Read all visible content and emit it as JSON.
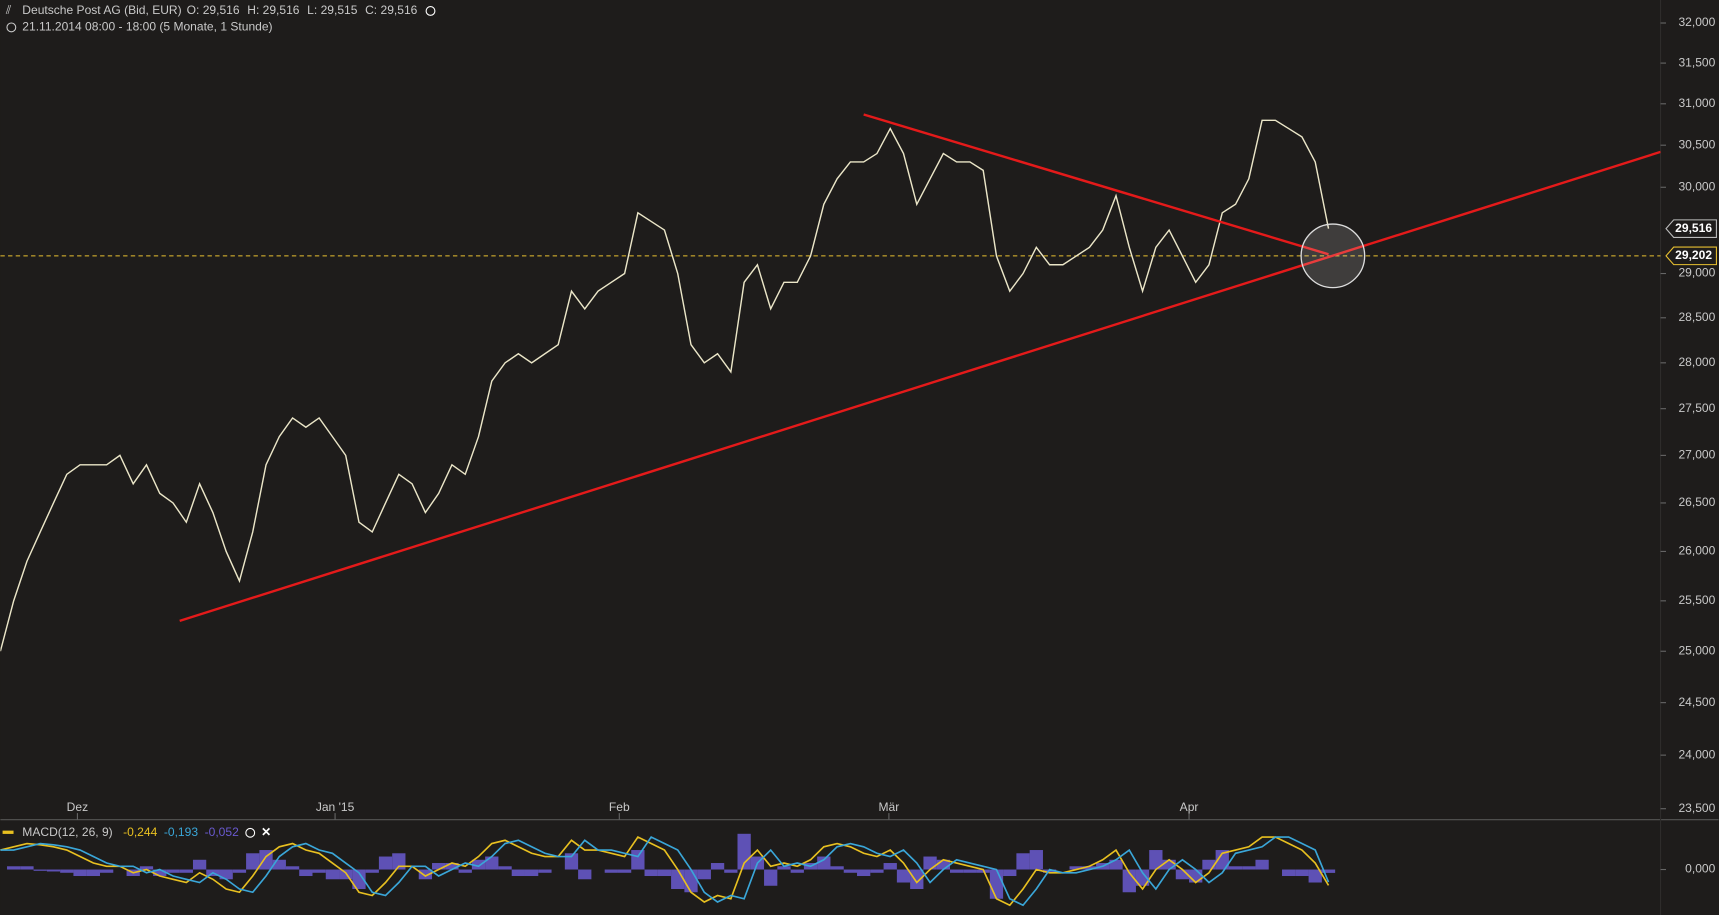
{
  "chart_data": [
    {
      "type": "line",
      "title": "Deutsche Post AG (Bid, EUR)",
      "stats": [
        "O: 29,516",
        "H: 29,516",
        "L: 29,515",
        "C: 29,516"
      ],
      "subtitle": "21.11.2014 08:00 - 18:00 (5 Monate, 1 Stunde)",
      "log_scale": true,
      "color": "#ebe6c8",
      "values": [
        25.0,
        25.5,
        25.9,
        26.2,
        26.5,
        26.8,
        26.9,
        26.9,
        26.9,
        27.0,
        26.7,
        26.9,
        26.6,
        26.5,
        26.3,
        26.7,
        26.4,
        26.0,
        25.7,
        26.2,
        26.9,
        27.2,
        27.4,
        27.3,
        27.4,
        27.2,
        27.0,
        26.3,
        26.2,
        26.5,
        26.8,
        26.7,
        26.4,
        26.6,
        26.9,
        26.8,
        27.2,
        27.8,
        28.0,
        28.1,
        28.0,
        28.1,
        28.2,
        28.8,
        28.6,
        28.8,
        28.9,
        29.0,
        29.7,
        29.6,
        29.5,
        29.0,
        28.2,
        28.0,
        28.1,
        27.9,
        28.9,
        29.1,
        28.6,
        28.9,
        28.9,
        29.2,
        29.8,
        30.1,
        30.3,
        30.3,
        30.4,
        30.7,
        30.4,
        29.8,
        30.1,
        30.4,
        30.3,
        30.3,
        30.2,
        29.2,
        28.8,
        29.0,
        29.3,
        29.1,
        29.1,
        29.2,
        29.3,
        29.5,
        29.9,
        29.3,
        28.8,
        29.3,
        29.5,
        29.2,
        28.9,
        29.1,
        29.7,
        29.8,
        30.1,
        30.8,
        30.8,
        30.7,
        30.6,
        30.3,
        29.516
      ],
      "xlim": [
        0,
        125
      ],
      "xticks": [
        {
          "value": 5.8,
          "label": "Dez"
        },
        {
          "value": 25.2,
          "label": "Jan '15"
        },
        {
          "value": 46.6,
          "label": "Feb"
        },
        {
          "value": 66.9,
          "label": "Mär"
        },
        {
          "value": 89.5,
          "label": "Apr"
        }
      ],
      "ylim": [
        23.5,
        32
      ],
      "yticks": [
        {
          "value": 23.5,
          "label": "23,500"
        },
        {
          "value": 24,
          "label": "24,000"
        },
        {
          "value": 24.5,
          "label": "24,500"
        },
        {
          "value": 25,
          "label": "25,000"
        },
        {
          "value": 25.5,
          "label": "25,500"
        },
        {
          "value": 26,
          "label": "26,000"
        },
        {
          "value": 26.5,
          "label": "26,500"
        },
        {
          "value": 27,
          "label": "27,000"
        },
        {
          "value": 27.5,
          "label": "27,500"
        },
        {
          "value": 28,
          "label": "28,000"
        },
        {
          "value": 28.5,
          "label": "28,500"
        },
        {
          "value": 29,
          "label": "29,000"
        },
        {
          "value": 30,
          "label": "30,000"
        },
        {
          "value": 30.5,
          "label": "30,500"
        },
        {
          "value": 31,
          "label": "31,000"
        },
        {
          "value": 31.5,
          "label": "31,500"
        },
        {
          "value": 32,
          "label": "32,000"
        }
      ],
      "last_price": {
        "value": 29.516,
        "label": "29,516"
      },
      "horizontal_line": {
        "value": 29.202,
        "label": "29,202",
        "color": "#e8c030"
      },
      "trendlines": [
        {
          "color": "#e41a1a",
          "x": [
            13.5,
            125
          ],
          "y": [
            25.3,
            30.42
          ]
        },
        {
          "color": "#e41a1a",
          "x": [
            65,
            100
          ],
          "y": [
            30.87,
            29.22
          ]
        }
      ]
    },
    {
      "type": "macd",
      "title": "MACD(12, 26, 9)",
      "ylim": [
        -0.7,
        0.7
      ],
      "yticks": [
        {
          "value": 0,
          "label": "0,000"
        }
      ],
      "xlim": [
        0,
        125
      ],
      "series": [
        {
          "color": "#e8c020",
          "current": "-0,244",
          "values": [
            0.3,
            0.35,
            0.4,
            0.38,
            0.35,
            0.3,
            0.2,
            0.1,
            0.05,
            0.05,
            -0.05,
            0.0,
            -0.1,
            -0.15,
            -0.2,
            -0.05,
            -0.15,
            -0.3,
            -0.35,
            -0.1,
            0.2,
            0.35,
            0.4,
            0.3,
            0.25,
            0.1,
            -0.05,
            -0.35,
            -0.4,
            -0.2,
            0.05,
            0.05,
            -0.1,
            0.0,
            0.1,
            0.05,
            0.2,
            0.4,
            0.45,
            0.35,
            0.25,
            0.2,
            0.2,
            0.45,
            0.3,
            0.3,
            0.25,
            0.2,
            0.5,
            0.4,
            0.3,
            0.0,
            -0.35,
            -0.5,
            -0.4,
            -0.45,
            0.1,
            0.3,
            0.05,
            0.1,
            0.05,
            0.15,
            0.35,
            0.4,
            0.35,
            0.25,
            0.2,
            0.3,
            0.1,
            -0.2,
            0.0,
            0.15,
            0.1,
            0.05,
            0.0,
            -0.45,
            -0.55,
            -0.3,
            0.0,
            -0.05,
            -0.05,
            0.0,
            0.05,
            0.15,
            0.3,
            -0.05,
            -0.3,
            0.0,
            0.15,
            0.0,
            -0.2,
            -0.05,
            0.25,
            0.3,
            0.35,
            0.5,
            0.5,
            0.4,
            0.3,
            0.1,
            -0.244
          ]
        },
        {
          "color": "#3aa6d8",
          "current": "-0,193",
          "values": [
            0.3,
            0.3,
            0.35,
            0.4,
            0.38,
            0.35,
            0.3,
            0.2,
            0.1,
            0.05,
            0.05,
            -0.05,
            0.0,
            -0.1,
            -0.15,
            -0.2,
            -0.05,
            -0.15,
            -0.3,
            -0.35,
            -0.1,
            0.2,
            0.35,
            0.4,
            0.3,
            0.25,
            0.1,
            -0.05,
            -0.35,
            -0.4,
            -0.2,
            0.05,
            0.05,
            -0.1,
            0.0,
            0.1,
            0.05,
            0.2,
            0.4,
            0.45,
            0.35,
            0.25,
            0.2,
            0.2,
            0.45,
            0.3,
            0.3,
            0.25,
            0.2,
            0.5,
            0.4,
            0.3,
            0.0,
            -0.35,
            -0.5,
            -0.4,
            -0.45,
            0.1,
            0.3,
            0.05,
            0.1,
            0.05,
            0.15,
            0.35,
            0.4,
            0.35,
            0.25,
            0.2,
            0.3,
            0.1,
            -0.2,
            0.0,
            0.15,
            0.1,
            0.05,
            0.0,
            -0.45,
            -0.55,
            -0.3,
            0.0,
            -0.05,
            -0.05,
            0.0,
            0.05,
            0.15,
            0.3,
            -0.05,
            -0.3,
            0.0,
            0.15,
            0.0,
            -0.2,
            -0.05,
            0.25,
            0.3,
            0.35,
            0.5,
            0.5,
            0.4,
            0.3,
            -0.193
          ]
        },
        {
          "color": "#6a5ad0",
          "current": "-0,052",
          "bars": true,
          "values": [
            0,
            0.05,
            0.05,
            -0.02,
            -0.03,
            -0.05,
            -0.1,
            -0.1,
            -0.05,
            0,
            -0.1,
            0.05,
            -0.1,
            -0.05,
            -0.05,
            0.15,
            -0.1,
            -0.15,
            -0.05,
            0.25,
            0.3,
            0.15,
            0.05,
            -0.1,
            -0.05,
            -0.15,
            -0.15,
            -0.3,
            -0.05,
            0.2,
            0.25,
            0,
            -0.15,
            0.1,
            0.1,
            -0.05,
            0.15,
            0.2,
            0.05,
            -0.1,
            -0.1,
            -0.05,
            0,
            0.25,
            -0.15,
            0,
            -0.05,
            -0.05,
            0.3,
            -0.1,
            -0.1,
            -0.3,
            -0.35,
            -0.15,
            0.1,
            -0.05,
            0.55,
            0.2,
            -0.25,
            0.05,
            -0.05,
            0.1,
            0.2,
            0.05,
            -0.05,
            -0.1,
            -0.05,
            0.1,
            -0.2,
            -0.3,
            0.2,
            0.15,
            -0.05,
            -0.05,
            -0.05,
            -0.45,
            -0.1,
            0.25,
            0.3,
            -0.05,
            0,
            0.05,
            0.05,
            0.1,
            0.15,
            -0.35,
            -0.25,
            0.3,
            0.15,
            -0.15,
            -0.2,
            0.15,
            0.3,
            0.05,
            0.05,
            0.15,
            0,
            -0.1,
            -0.1,
            -0.2,
            -0.052
          ]
        }
      ]
    }
  ]
}
